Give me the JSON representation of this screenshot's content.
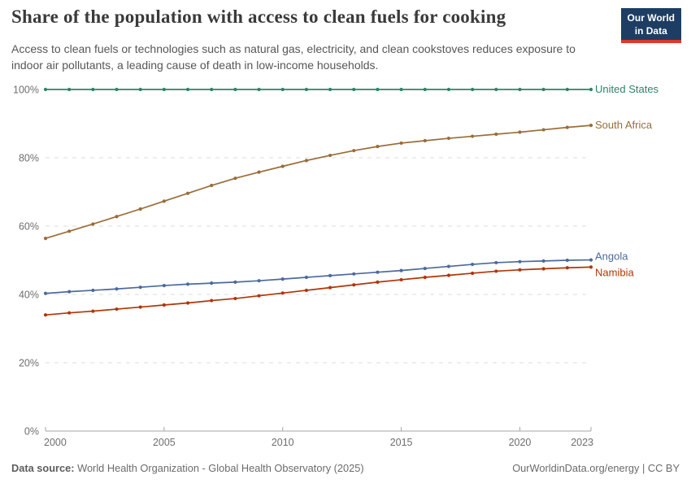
{
  "logo": {
    "line1": "Our World",
    "line2": "in Data",
    "bg_color": "#1d3d63",
    "stripe_color": "#e0362c"
  },
  "chart_data": {
    "type": "line",
    "title": "Share of the population with access to clean fuels for cooking",
    "subtitle": "Access to clean fuels or technologies such as natural gas, electricity, and clean cookstoves reduces exposure to indoor air pollutants, a leading cause of death in low-income households.",
    "x": [
      2000,
      2001,
      2002,
      2003,
      2004,
      2005,
      2006,
      2007,
      2008,
      2009,
      2010,
      2011,
      2012,
      2013,
      2014,
      2015,
      2016,
      2017,
      2018,
      2019,
      2020,
      2021,
      2022,
      2023
    ],
    "series": [
      {
        "name": "United States",
        "color": "#2C8465",
        "label_dy": 0,
        "values": [
          100,
          100,
          100,
          100,
          100,
          100,
          100,
          100,
          100,
          100,
          100,
          100,
          100,
          100,
          100,
          100,
          100,
          100,
          100,
          100,
          100,
          100,
          100,
          100
        ]
      },
      {
        "name": "South Africa",
        "color": "#996D39",
        "label_dy": 0,
        "values": [
          56.4,
          58.5,
          60.6,
          62.8,
          65.0,
          67.3,
          69.6,
          71.9,
          74.0,
          75.8,
          77.5,
          79.2,
          80.7,
          82.1,
          83.3,
          84.3,
          85.0,
          85.7,
          86.3,
          86.9,
          87.5,
          88.2,
          88.9,
          89.5
        ]
      },
      {
        "name": "Angola",
        "color": "#4C6A9C",
        "label_dy": -4,
        "values": [
          40.3,
          40.8,
          41.2,
          41.6,
          42.1,
          42.6,
          43.0,
          43.3,
          43.6,
          44.0,
          44.5,
          45.0,
          45.5,
          46.0,
          46.5,
          47.0,
          47.6,
          48.2,
          48.8,
          49.3,
          49.6,
          49.8,
          50.0,
          50.1
        ]
      },
      {
        "name": "Namibia",
        "color": "#B13507",
        "label_dy": 7,
        "values": [
          34.0,
          34.6,
          35.1,
          35.7,
          36.3,
          36.9,
          37.5,
          38.2,
          38.8,
          39.6,
          40.4,
          41.2,
          42.0,
          42.8,
          43.6,
          44.3,
          45.0,
          45.6,
          46.2,
          46.8,
          47.2,
          47.5,
          47.8,
          48.0
        ]
      }
    ],
    "ylim": [
      0,
      100
    ],
    "yticks": [
      0,
      20,
      40,
      60,
      80,
      100
    ],
    "ytick_labels": [
      "0%",
      "20%",
      "40%",
      "60%",
      "80%",
      "100%"
    ],
    "xticks": [
      2000,
      2005,
      2010,
      2015,
      2020,
      2023
    ],
    "xtick_labels": [
      "2000",
      "2005",
      "2010",
      "2015",
      "2020",
      "2023"
    ],
    "grid": "horizontal-dashed",
    "legend_position": "right-end-labels"
  },
  "footer": {
    "source_label": "Data source:",
    "source_value": "World Health Organization - Global Health Observatory (2025)",
    "link": "OurWorldinData.org/energy | CC BY"
  }
}
